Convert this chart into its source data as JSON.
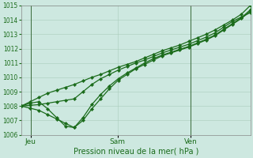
{
  "title": "Pression niveau de la mer( hPa )",
  "ylim": [
    1006,
    1015
  ],
  "yticks": [
    1006,
    1007,
    1008,
    1009,
    1010,
    1011,
    1012,
    1013,
    1014,
    1015
  ],
  "background_color": "#cde8e0",
  "grid_color": "#aaccbb",
  "line_color": "#1a6b1a",
  "vline_color": "#3a6a3a",
  "xtick_labels": [
    "Jeu",
    "Sam",
    "Ven"
  ],
  "xtick_positions": [
    0.04,
    0.42,
    0.74
  ],
  "vline_positions": [
    0.04,
    0.74
  ],
  "series": [
    [
      1008.0,
      1008.05,
      1008.1,
      1008.2,
      1008.3,
      1008.4,
      1008.5,
      1009.0,
      1009.5,
      1009.9,
      1010.2,
      1010.5,
      1010.75,
      1011.0,
      1011.2,
      1011.45,
      1011.7,
      1011.9,
      1012.1,
      1012.3,
      1012.55,
      1012.8,
      1013.1,
      1013.5,
      1013.9,
      1014.2,
      1014.5
    ],
    [
      1008.0,
      1007.85,
      1007.7,
      1007.4,
      1007.1,
      1006.8,
      1006.5,
      1007.0,
      1007.8,
      1008.5,
      1009.2,
      1009.8,
      1010.2,
      1010.6,
      1010.9,
      1011.2,
      1011.5,
      1011.7,
      1011.9,
      1012.1,
      1012.35,
      1012.6,
      1012.9,
      1013.3,
      1013.7,
      1014.1,
      1014.6
    ],
    [
      1008.0,
      1008.2,
      1008.3,
      1007.8,
      1007.2,
      1006.6,
      1006.5,
      1007.2,
      1008.1,
      1008.8,
      1009.4,
      1009.9,
      1010.3,
      1010.65,
      1011.0,
      1011.3,
      1011.55,
      1011.75,
      1011.95,
      1012.15,
      1012.4,
      1012.65,
      1012.95,
      1013.35,
      1013.75,
      1014.15,
      1014.7
    ],
    [
      1008.0,
      1008.3,
      1008.6,
      1008.9,
      1009.1,
      1009.3,
      1009.5,
      1009.75,
      1010.0,
      1010.2,
      1010.45,
      1010.7,
      1010.9,
      1011.1,
      1011.35,
      1011.6,
      1011.85,
      1012.05,
      1012.25,
      1012.5,
      1012.75,
      1013.0,
      1013.3,
      1013.65,
      1014.0,
      1014.4,
      1015.0
    ]
  ],
  "n_points": 27,
  "marker": "D",
  "markersize": 2.2,
  "linewidth": 0.9,
  "title_fontsize": 7,
  "ytick_fontsize": 5.5,
  "xtick_fontsize": 6.5
}
